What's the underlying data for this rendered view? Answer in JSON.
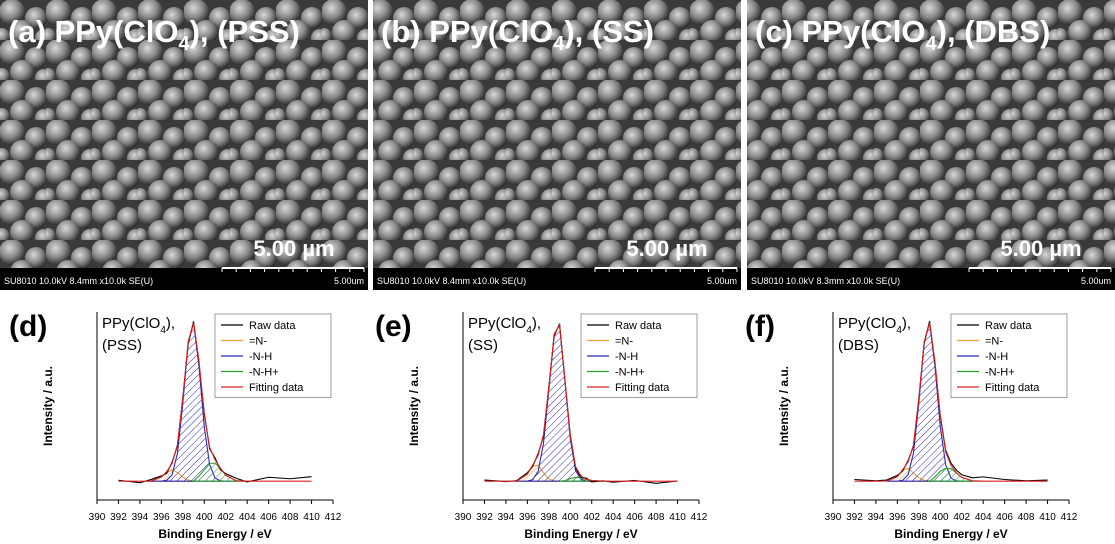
{
  "sem_panels": [
    {
      "title": {
        "text": "(a) PPy(ClO",
        "subscript": "4",
        "suffix": "), (PSS)"
      },
      "scale_label": "5.00 µm",
      "info": "SU8010 10.0kV 8.4mm x10.0k SE(U)",
      "scale_info": "5.00um"
    },
    {
      "title": {
        "text": "(b) PPy(ClO",
        "subscript": "4",
        "suffix": "), (SS)"
      },
      "scale_label": "5.00 µm",
      "info": "SU8010 10.0kV 8.4mm x10.0k SE(U)",
      "scale_info": "5.00um"
    },
    {
      "title": {
        "text": "(c) PPy(ClO",
        "subscript": "4",
        "suffix": "), (DBS)"
      },
      "scale_label": "5.00 µm",
      "info": "SU8010 10.0kV 8.3mm x10.0k SE(U)",
      "scale_info": "5.00um"
    }
  ],
  "chart_data": [
    {
      "type": "line",
      "panel_label": "(d)",
      "annotation": {
        "text": "PPy(ClO",
        "subscript": "4",
        "suffix": "),",
        "line2": "(PSS)"
      },
      "xlabel": "Binding Energy / eV",
      "ylabel": "Intensity / a.u.",
      "legend": "upper right",
      "xlim": [
        390,
        412
      ],
      "xticks": [
        390,
        392,
        394,
        396,
        398,
        400,
        402,
        404,
        406,
        408,
        410,
        412
      ],
      "ylim": [
        0,
        100
      ],
      "x": [
        392,
        394,
        395,
        396,
        396.5,
        397,
        397.5,
        398,
        398.5,
        399,
        399.5,
        400,
        400.5,
        401,
        401.5,
        402,
        403,
        404,
        406,
        408,
        410
      ],
      "series": [
        {
          "name": "Raw data",
          "color": "#000000",
          "values": [
            10.5,
            9.2,
            10.8,
            12.8,
            14.2,
            20.1,
            28.8,
            54.5,
            83.1,
            95.0,
            73.2,
            46.3,
            27.2,
            22.5,
            16.1,
            14.0,
            11.5,
            9.6,
            12.1,
            11.3,
            12.4
          ]
        },
        {
          "name": "=N-",
          "color": "#f0a030",
          "values": [
            null,
            null,
            10.0,
            12.2,
            14.6,
            16.0,
            14.6,
            12.2,
            10.6,
            10.0,
            null,
            null,
            null,
            null,
            null,
            null,
            null,
            null,
            null,
            null,
            null
          ]
        },
        {
          "name": "-N-H",
          "color": "#2a2ab8",
          "values": [
            null,
            null,
            10.0,
            10.0,
            10.5,
            13.4,
            24.9,
            51.4,
            83.7,
            94.2,
            71.7,
            39.0,
            18.8,
            11.7,
            10.2,
            10.0,
            10.0,
            null,
            null,
            null,
            null
          ]
        },
        {
          "name": "-N-H+",
          "color": "#2ca02c",
          "values": [
            null,
            null,
            null,
            null,
            null,
            null,
            null,
            null,
            null,
            10.0,
            12.7,
            16.1,
            19.3,
            19.7,
            16.8,
            13.2,
            10.2,
            10.0,
            null,
            null,
            null
          ]
        },
        {
          "name": "Fitting data",
          "color": "#e02020",
          "values": [
            10,
            10,
            10,
            12.2,
            15.1,
            19.4,
            29.5,
            53.6,
            84.3,
            94.2,
            74.4,
            45.1,
            28.1,
            21.4,
            17.0,
            13.2,
            10.2,
            10,
            10,
            10,
            10
          ]
        }
      ]
    },
    {
      "type": "line",
      "panel_label": "(e)",
      "annotation": {
        "text": "PPy(ClO",
        "subscript": "4",
        "suffix": "),",
        "line2": "(SS)"
      },
      "xlabel": "Binding Energy / eV",
      "ylabel": "Intensity / a.u.",
      "legend": "upper right",
      "xlim": [
        390,
        412
      ],
      "xticks": [
        390,
        392,
        394,
        396,
        398,
        400,
        402,
        404,
        406,
        408,
        410,
        412
      ],
      "ylim": [
        0,
        100
      ],
      "x": [
        392,
        394,
        395,
        396,
        396.5,
        397,
        397.5,
        398,
        398.5,
        399,
        399.5,
        400,
        400.5,
        401,
        401.5,
        402,
        403,
        404,
        406,
        408,
        410
      ],
      "series": [
        {
          "name": "Raw data",
          "color": "#000000",
          "values": [
            10.6,
            9.8,
            10.3,
            14.5,
            18.0,
            24.6,
            33.8,
            60.2,
            87.1,
            93.8,
            63.5,
            34.7,
            16.9,
            12.1,
            11.6,
            9.6,
            10.2,
            9.5,
            10.4,
            8.9,
            10.1
          ]
        },
        {
          "name": "=N-",
          "color": "#f0a030",
          "values": [
            null,
            null,
            10.0,
            13.7,
            17.9,
            18.5,
            14.6,
            11.2,
            10.2,
            10.0,
            null,
            null,
            null,
            null,
            null,
            null,
            null,
            null,
            null,
            null,
            null
          ]
        },
        {
          "name": "-N-H",
          "color": "#2a2ab8",
          "values": [
            null,
            null,
            10.0,
            10.1,
            10.8,
            15.2,
            30.0,
            58.4,
            88.0,
            93.0,
            64.0,
            32.5,
            15.6,
            11.0,
            10.1,
            10.0,
            10.0,
            null,
            null,
            null,
            null
          ]
        },
        {
          "name": "-N-H+",
          "color": "#2ca02c",
          "values": [
            null,
            null,
            null,
            null,
            null,
            null,
            null,
            null,
            null,
            10.0,
            10.3,
            11.4,
            12.0,
            11.8,
            10.9,
            10.4,
            10.0,
            null,
            null,
            null,
            null
          ]
        },
        {
          "name": "Fitting data",
          "color": "#e02020",
          "values": [
            10,
            10,
            10,
            13.8,
            18.7,
            23.7,
            34.6,
            59.6,
            88.2,
            93.0,
            64.3,
            33.9,
            17.6,
            12.8,
            11.0,
            10.4,
            10,
            10,
            10,
            10,
            10
          ]
        }
      ]
    },
    {
      "type": "line",
      "panel_label": "(f)",
      "annotation": {
        "text": "PPy(ClO",
        "subscript": "4",
        "suffix": "),",
        "line2": "(DBS)"
      },
      "xlabel": "Binding Energy / eV",
      "ylabel": "Intensity / a.u.",
      "legend": "upper right",
      "xlim": [
        390,
        412
      ],
      "xticks": [
        390,
        392,
        394,
        396,
        398,
        400,
        402,
        404,
        406,
        408,
        410,
        412
      ],
      "ylim": [
        0,
        100
      ],
      "x": [
        392,
        394,
        395,
        396,
        396.5,
        397,
        397.5,
        398,
        398.5,
        399,
        399.5,
        400,
        400.5,
        401,
        401.5,
        402,
        403,
        404,
        406,
        408,
        410
      ],
      "series": [
        {
          "name": "Raw data",
          "color": "#000000",
          "values": [
            10.9,
            10.2,
            10.6,
            13.1,
            15.5,
            21.0,
            28.5,
            54.0,
            83.4,
            95.1,
            72.9,
            45.0,
            26.5,
            19.6,
            15.9,
            13.4,
            11.8,
            12.3,
            10.9,
            10.2,
            10.6
          ]
        },
        {
          "name": "=N-",
          "color": "#f0a030",
          "values": [
            null,
            null,
            10.1,
            12.4,
            15.7,
            16.9,
            14.3,
            11.8,
            10.5,
            10.0,
            null,
            null,
            null,
            null,
            null,
            null,
            null,
            null,
            null,
            null,
            null
          ]
        },
        {
          "name": "-N-H",
          "color": "#2a2ab8",
          "values": [
            null,
            null,
            10.0,
            10.0,
            10.5,
            13.4,
            24.9,
            51.4,
            83.7,
            94.2,
            71.7,
            39.0,
            18.8,
            11.7,
            10.2,
            10.0,
            10.0,
            null,
            null,
            null,
            null
          ]
        },
        {
          "name": "-N-H+",
          "color": "#2ca02c",
          "values": [
            null,
            null,
            null,
            null,
            null,
            null,
            null,
            null,
            null,
            10.0,
            12.2,
            15.3,
            16.8,
            16.7,
            14.3,
            12.0,
            10.2,
            10.0,
            null,
            null,
            null
          ]
        },
        {
          "name": "Fitting data",
          "color": "#e02020",
          "values": [
            10,
            10,
            10.1,
            12.4,
            16.2,
            20.3,
            29.2,
            53.2,
            84.2,
            94.2,
            73.9,
            44.3,
            25.6,
            18.4,
            14.5,
            12.0,
            10.2,
            10,
            10,
            10,
            10
          ]
        }
      ]
    }
  ]
}
